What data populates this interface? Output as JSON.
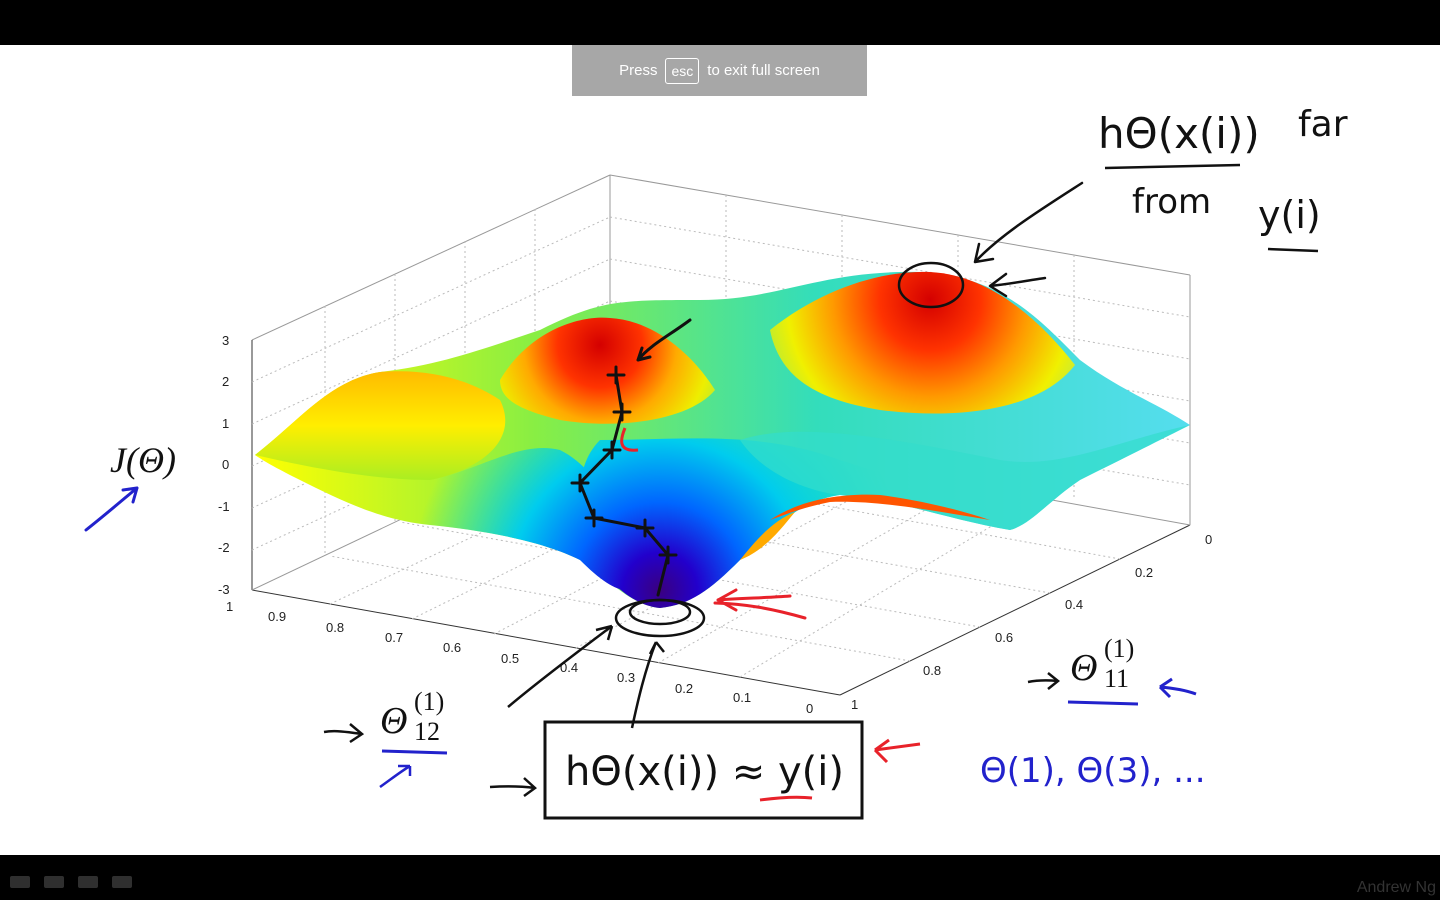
{
  "banner": {
    "press": "Press",
    "key": "esc",
    "rest": "to exit full screen"
  },
  "credit": "Andrew Ng",
  "plot": {
    "z_ticks": [
      "3",
      "2",
      "1",
      "0",
      "-1",
      "-2",
      "-3"
    ],
    "left_ticks": [
      "1",
      "0.9",
      "0.8",
      "0.7",
      "0.6",
      "0.5",
      "0.4",
      "0.3",
      "0.2",
      "0.1",
      "0"
    ],
    "right_ticks": [
      "0",
      "0.2",
      "0.4",
      "0.6",
      "0.8",
      "1"
    ]
  },
  "annotations": {
    "cost_label": "J(Θ)",
    "theta12": "Θ",
    "theta12_sup": "(1)",
    "theta12_sub": "12",
    "theta11": "Θ",
    "theta11_sup": "(1)",
    "theta11_sub": "11",
    "top_note_h": "hΘ(x(i))",
    "top_note_far": "far",
    "top_note_from": "from",
    "top_note_y": "y(i)",
    "box_text": "hΘ(x(i)) ≈ y(i)",
    "params_text": "Θ(1), Θ(3), ..."
  },
  "colors": {
    "ink_black": "#111111",
    "ink_blue": "#2222cc",
    "ink_red": "#e8222a"
  }
}
